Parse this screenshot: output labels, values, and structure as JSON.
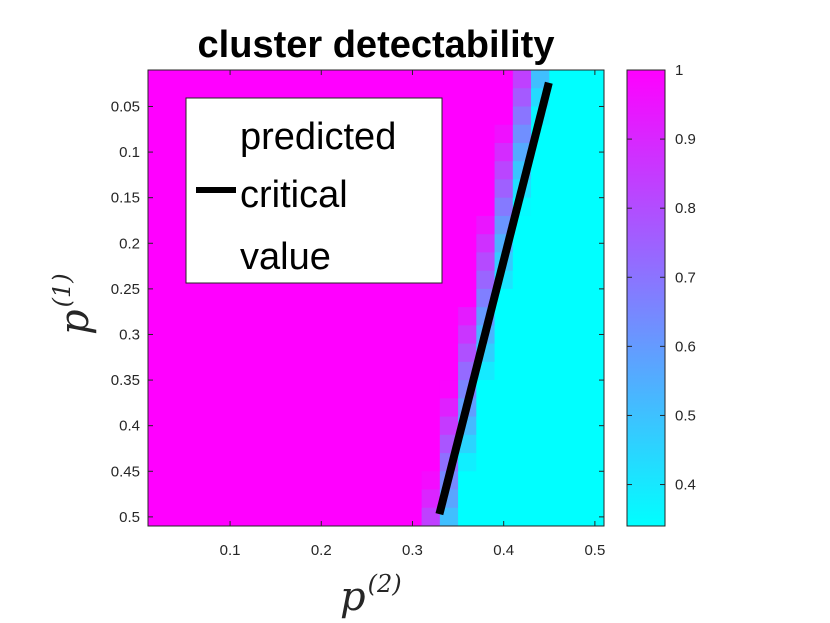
{
  "chart_data": {
    "type": "heatmap",
    "title": "cluster detectability",
    "xlabel": {
      "base": "p",
      "sup": "(2)"
    },
    "ylabel": {
      "base": "p",
      "sup": "(1)"
    },
    "x_ticks": [
      "0.1",
      "0.2",
      "0.3",
      "0.4",
      "0.5"
    ],
    "y_ticks": [
      "0.05",
      "0.1",
      "0.15",
      "0.2",
      "0.25",
      "0.3",
      "0.35",
      "0.4",
      "0.45",
      "0.5"
    ],
    "x_range": [
      0.01,
      0.51
    ],
    "y_range": [
      0.01,
      0.51
    ],
    "y_reversed": true,
    "grid": false,
    "colorbar": {
      "ticks": [
        "0.4",
        "0.5",
        "0.6",
        "0.7",
        "0.8",
        "0.9",
        "1"
      ],
      "range": [
        0.34,
        1.0
      ],
      "colormap": "cool",
      "low_color": "#00ffff",
      "high_color": "#ff00ff"
    },
    "cells": {
      "x_start": 0.02,
      "x_step": 0.02,
      "x_count": 25,
      "y_start": 0.02,
      "y_step": 0.02,
      "y_count": 25,
      "transition": [
        {
          "y": 0.02,
          "x": 0.43
        },
        {
          "y": 0.5,
          "x": 0.33
        }
      ],
      "low_value": 0.34,
      "high_value": 1.0,
      "transition_width": 0.02
    },
    "series": [
      {
        "name": "predicted critical value",
        "type": "line",
        "color": "#000000",
        "x": [
          0.3295,
          0.4495
        ],
        "y": [
          0.497,
          0.024
        ]
      }
    ],
    "legend": {
      "position": "top-left",
      "lines": [
        "predicted",
        "critical",
        "value"
      ]
    }
  }
}
